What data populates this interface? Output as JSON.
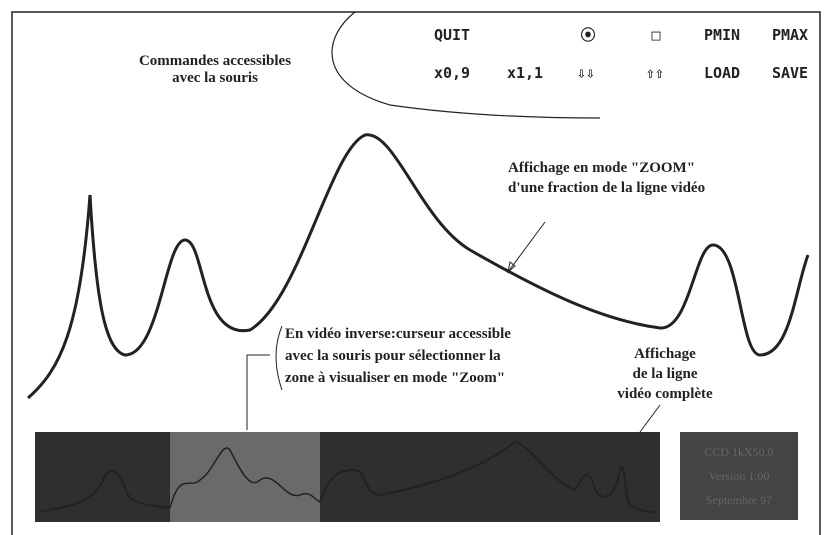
{
  "menu": {
    "row1": [
      "QUIT",
      "⦿",
      "□",
      "PMIN",
      "PMAX"
    ],
    "row2": [
      "x0,9",
      "x1,1",
      "⇩⇩",
      "⇧⇧",
      "LOAD",
      "SAVE"
    ]
  },
  "annotations": {
    "commands": [
      "Commandes accessibles",
      "avec la souris"
    ],
    "zoom": [
      "Affichage en mode \"ZOOM\"",
      "d'une fraction de la ligne vidéo"
    ],
    "cursor": [
      "En vidéo inverse:curseur accessible",
      "avec la souris pour sélectionner la",
      "zone à visualiser en mode \"Zoom\""
    ],
    "full": [
      "Affichage",
      "de la ligne",
      "vidéo complète"
    ]
  },
  "status_box": {
    "lines": [
      "CCD 1kX50.0",
      "Version 1.00",
      "Septembre 97"
    ]
  }
}
